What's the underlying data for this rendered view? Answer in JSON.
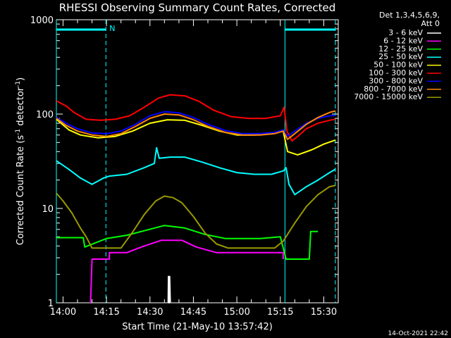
{
  "chart_data": {
    "type": "line",
    "title": "RHESSI Observing Summary Count Rates, Corrected",
    "xlabel": "Start Time (21-May-10 13:57:42)",
    "ylabel_main": "Corrected Count Rate (s",
    "ylabel_sup1": "-1",
    "ylabel_mid": " detector",
    "ylabel_sup2": "-1",
    "ylabel_end": ")",
    "y_scale": "log",
    "ylim": [
      1,
      1000
    ],
    "xlim_minutes": [
      837.7,
      935.0
    ],
    "x_tick_labels": [
      "14:00",
      "14:15",
      "14:30",
      "14:45",
      "15:00",
      "15:15",
      "15:30"
    ],
    "x_tick_minutes": [
      840,
      855,
      870,
      885,
      900,
      915,
      930
    ],
    "y_tick_labels": [
      "1",
      "10",
      "100",
      "1000"
    ],
    "y_tick_values": [
      1,
      10,
      100,
      1000
    ],
    "legend_header": [
      "Det 1,3,4,5,6,9,",
      "Att 0"
    ],
    "legend_placement": "right",
    "timestamp": "14-Oct-2021 22:42",
    "night_marker_label": "N",
    "night_intervals_minutes": [
      [
        837.7,
        854.8
      ],
      [
        916.6,
        934.0
      ]
    ],
    "eclipse_boundary_minutes": [
      837.7,
      854.8,
      916.6,
      934.0
    ],
    "series": [
      {
        "name": "3 - 6 keV",
        "color": "#ffffff",
        "points": [
          [
            876.3,
            1
          ],
          [
            876.4,
            1.9
          ],
          [
            876.6,
            1
          ],
          [
            876.8,
            1.9
          ],
          [
            877.0,
            1
          ]
        ]
      },
      {
        "name": "6 - 12 keV",
        "color": "#ff00ff",
        "points": [
          [
            849.5,
            1
          ],
          [
            850.0,
            2.9
          ],
          [
            856.0,
            2.9
          ],
          [
            856.0,
            3.4
          ],
          [
            862.0,
            3.4
          ],
          [
            867.0,
            3.9
          ],
          [
            874.0,
            4.6
          ],
          [
            881.0,
            4.6
          ],
          [
            886.0,
            3.9
          ],
          [
            893.0,
            3.4
          ],
          [
            916.0,
            3.4
          ],
          [
            916.0,
            2.9
          ]
        ]
      },
      {
        "name": "12 - 25 keV",
        "color": "#00ff00",
        "points": [
          [
            837.7,
            4.9
          ],
          [
            847.0,
            4.9
          ],
          [
            847.5,
            3.9
          ],
          [
            855.0,
            4.8
          ],
          [
            862.0,
            5.2
          ],
          [
            868.0,
            5.8
          ],
          [
            875.0,
            6.6
          ],
          [
            882.0,
            6.2
          ],
          [
            889.0,
            5.3
          ],
          [
            896.0,
            4.8
          ],
          [
            908.0,
            4.8
          ],
          [
            915.0,
            5.0
          ],
          [
            917.0,
            2.9
          ],
          [
            925.0,
            2.9
          ],
          [
            925.5,
            5.7
          ],
          [
            928.0,
            5.7
          ]
        ]
      },
      {
        "name": "25 - 50 keV",
        "color": "#00ffff",
        "points": [
          [
            837.7,
            32
          ],
          [
            842.0,
            26
          ],
          [
            846.0,
            21
          ],
          [
            850.0,
            18
          ],
          [
            854.0,
            21
          ],
          [
            856.0,
            22
          ],
          [
            862.0,
            23
          ],
          [
            868.0,
            27
          ],
          [
            871.5,
            30
          ],
          [
            872.3,
            44
          ],
          [
            873.2,
            34
          ],
          [
            877.0,
            35
          ],
          [
            882.0,
            35
          ],
          [
            888.0,
            31
          ],
          [
            894.0,
            27
          ],
          [
            900.0,
            24
          ],
          [
            906.0,
            23
          ],
          [
            912.0,
            23
          ],
          [
            916.0,
            25
          ],
          [
            917.0,
            27
          ],
          [
            918.0,
            18
          ],
          [
            920.0,
            14
          ],
          [
            924.0,
            17
          ],
          [
            928.0,
            20
          ],
          [
            932.0,
            24
          ],
          [
            934.0,
            26
          ]
        ]
      },
      {
        "name": "50 - 100 keV",
        "color": "#ffff00",
        "points": [
          [
            837.7,
            88
          ],
          [
            842.0,
            68
          ],
          [
            846.0,
            60
          ],
          [
            852.0,
            56
          ],
          [
            858.0,
            58
          ],
          [
            864.0,
            66
          ],
          [
            870.0,
            80
          ],
          [
            876.0,
            87
          ],
          [
            882.0,
            86
          ],
          [
            888.0,
            76
          ],
          [
            894.0,
            66
          ],
          [
            900.0,
            60
          ],
          [
            906.0,
            60
          ],
          [
            912.0,
            62
          ],
          [
            916.0,
            66
          ],
          [
            917.5,
            40
          ],
          [
            921.0,
            37
          ],
          [
            926.0,
            42
          ],
          [
            930.0,
            48
          ],
          [
            934.0,
            53
          ]
        ]
      },
      {
        "name": "100 - 300 keV",
        "color": "#ff0000",
        "points": [
          [
            837.7,
            138
          ],
          [
            841.0,
            122
          ],
          [
            844.0,
            103
          ],
          [
            848.0,
            88
          ],
          [
            853.0,
            86
          ],
          [
            858.0,
            88
          ],
          [
            863.0,
            96
          ],
          [
            868.0,
            118
          ],
          [
            873.0,
            148
          ],
          [
            877.0,
            160
          ],
          [
            882.0,
            156
          ],
          [
            887.0,
            136
          ],
          [
            892.0,
            110
          ],
          [
            898.0,
            94
          ],
          [
            904.0,
            90
          ],
          [
            910.0,
            90
          ],
          [
            915.0,
            96
          ],
          [
            916.3,
            118
          ],
          [
            917.3,
            66
          ],
          [
            919.0,
            52
          ],
          [
            921.0,
            58
          ],
          [
            924.0,
            70
          ],
          [
            928.0,
            80
          ],
          [
            932.0,
            86
          ],
          [
            934.0,
            88
          ]
        ]
      },
      {
        "name": "300 - 800 keV",
        "color": "#0000ff",
        "points": [
          [
            837.7,
            92
          ],
          [
            841.0,
            80
          ],
          [
            845.0,
            70
          ],
          [
            850.0,
            63
          ],
          [
            855.0,
            62
          ],
          [
            860.0,
            66
          ],
          [
            865.0,
            78
          ],
          [
            870.0,
            96
          ],
          [
            875.0,
            106
          ],
          [
            880.0,
            103
          ],
          [
            885.0,
            92
          ],
          [
            890.0,
            78
          ],
          [
            896.0,
            67
          ],
          [
            902.0,
            62
          ],
          [
            908.0,
            62
          ],
          [
            913.0,
            64
          ],
          [
            916.0,
            68
          ],
          [
            917.5,
            58
          ],
          [
            920.0,
            66
          ],
          [
            924.0,
            80
          ],
          [
            928.0,
            90
          ],
          [
            932.0,
            96
          ],
          [
            934.0,
            97
          ]
        ]
      },
      {
        "name": "800 - 7000 keV",
        "color": "#ff8800",
        "points": [
          [
            837.7,
            90
          ],
          [
            841.0,
            76
          ],
          [
            845.0,
            66
          ],
          [
            850.0,
            60
          ],
          [
            855.0,
            58
          ],
          [
            860.0,
            62
          ],
          [
            865.0,
            74
          ],
          [
            870.0,
            90
          ],
          [
            875.0,
            100
          ],
          [
            880.0,
            98
          ],
          [
            885.0,
            87
          ],
          [
            890.0,
            74
          ],
          [
            896.0,
            64
          ],
          [
            902.0,
            60
          ],
          [
            908.0,
            60
          ],
          [
            913.0,
            62
          ],
          [
            916.0,
            66
          ],
          [
            917.5,
            54
          ],
          [
            920.0,
            62
          ],
          [
            924.0,
            78
          ],
          [
            928.0,
            92
          ],
          [
            932.0,
            104
          ],
          [
            934.0,
            108
          ]
        ]
      },
      {
        "name": "7000 - 15000 keV",
        "color": "#999900",
        "points": [
          [
            837.7,
            14.5
          ],
          [
            840.0,
            12
          ],
          [
            843.0,
            9
          ],
          [
            846.0,
            6.2
          ],
          [
            848.0,
            5
          ],
          [
            850.0,
            3.8
          ],
          [
            860.0,
            3.8
          ],
          [
            864.0,
            5.6
          ],
          [
            868.0,
            8.6
          ],
          [
            872.0,
            12
          ],
          [
            875.0,
            13.5
          ],
          [
            878.0,
            13
          ],
          [
            881.0,
            11.5
          ],
          [
            885.0,
            8.2
          ],
          [
            889.0,
            5.5
          ],
          [
            893.0,
            4.2
          ],
          [
            897.0,
            3.8
          ],
          [
            913.0,
            3.8
          ],
          [
            916.0,
            4.5
          ],
          [
            920.0,
            7
          ],
          [
            924.0,
            10.5
          ],
          [
            928.0,
            14
          ],
          [
            932.0,
            17
          ],
          [
            934.0,
            17.5
          ]
        ]
      }
    ]
  }
}
